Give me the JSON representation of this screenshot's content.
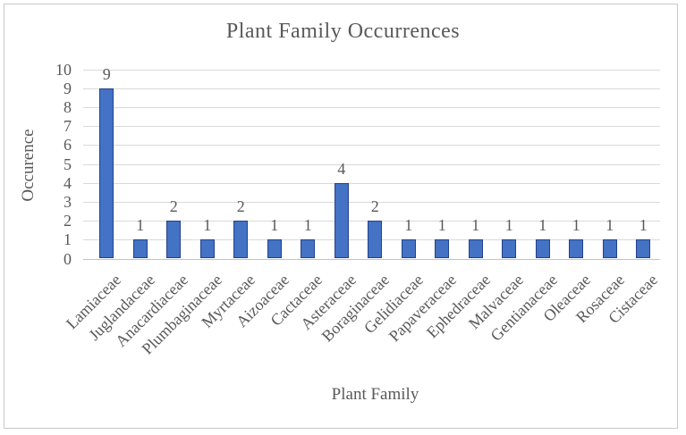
{
  "figure": {
    "background": "#ffffff",
    "frame_border_color": "#c9c9c9"
  },
  "chart_data": {
    "type": "bar",
    "title": "Plant Family Occurrences",
    "xlabel": "Plant Family",
    "ylabel": "Occurence",
    "categories": [
      "Lamiaceae",
      "Juglandaceae",
      "Anacardiaceae",
      "Plumbaginaceae",
      "Myrtaceae",
      "Aizoaceae",
      "Cactaceae",
      "Asteraceae",
      "Boraginaceae",
      "Gelidiaceae",
      "Papaveraceae",
      "Ephedraceae",
      "Malvaceae",
      "Gentianaceae",
      "Oleaceae",
      "Rosaceae",
      "Cistaceae"
    ],
    "values": [
      9,
      1,
      2,
      1,
      2,
      1,
      1,
      4,
      2,
      1,
      1,
      1,
      1,
      1,
      1,
      1,
      1
    ],
    "data_labels": [
      "9",
      "1",
      "2",
      "1",
      "2",
      "1",
      "1",
      "4",
      "2",
      "1",
      "1",
      "1",
      "1",
      "1",
      "1",
      "1",
      "1"
    ],
    "ylim": [
      0,
      10
    ],
    "yticks": [
      0,
      1,
      2,
      3,
      4,
      5,
      6,
      7,
      8,
      9,
      10
    ],
    "grid": true,
    "legend": "none",
    "x_tick_rotation_deg": 45,
    "bar_fill": "#4472c4",
    "bar_border": "#24418b",
    "gridline_color": "#d9d9d9",
    "axis_line_color": "#c3c3c3",
    "text_color": "#595959"
  }
}
